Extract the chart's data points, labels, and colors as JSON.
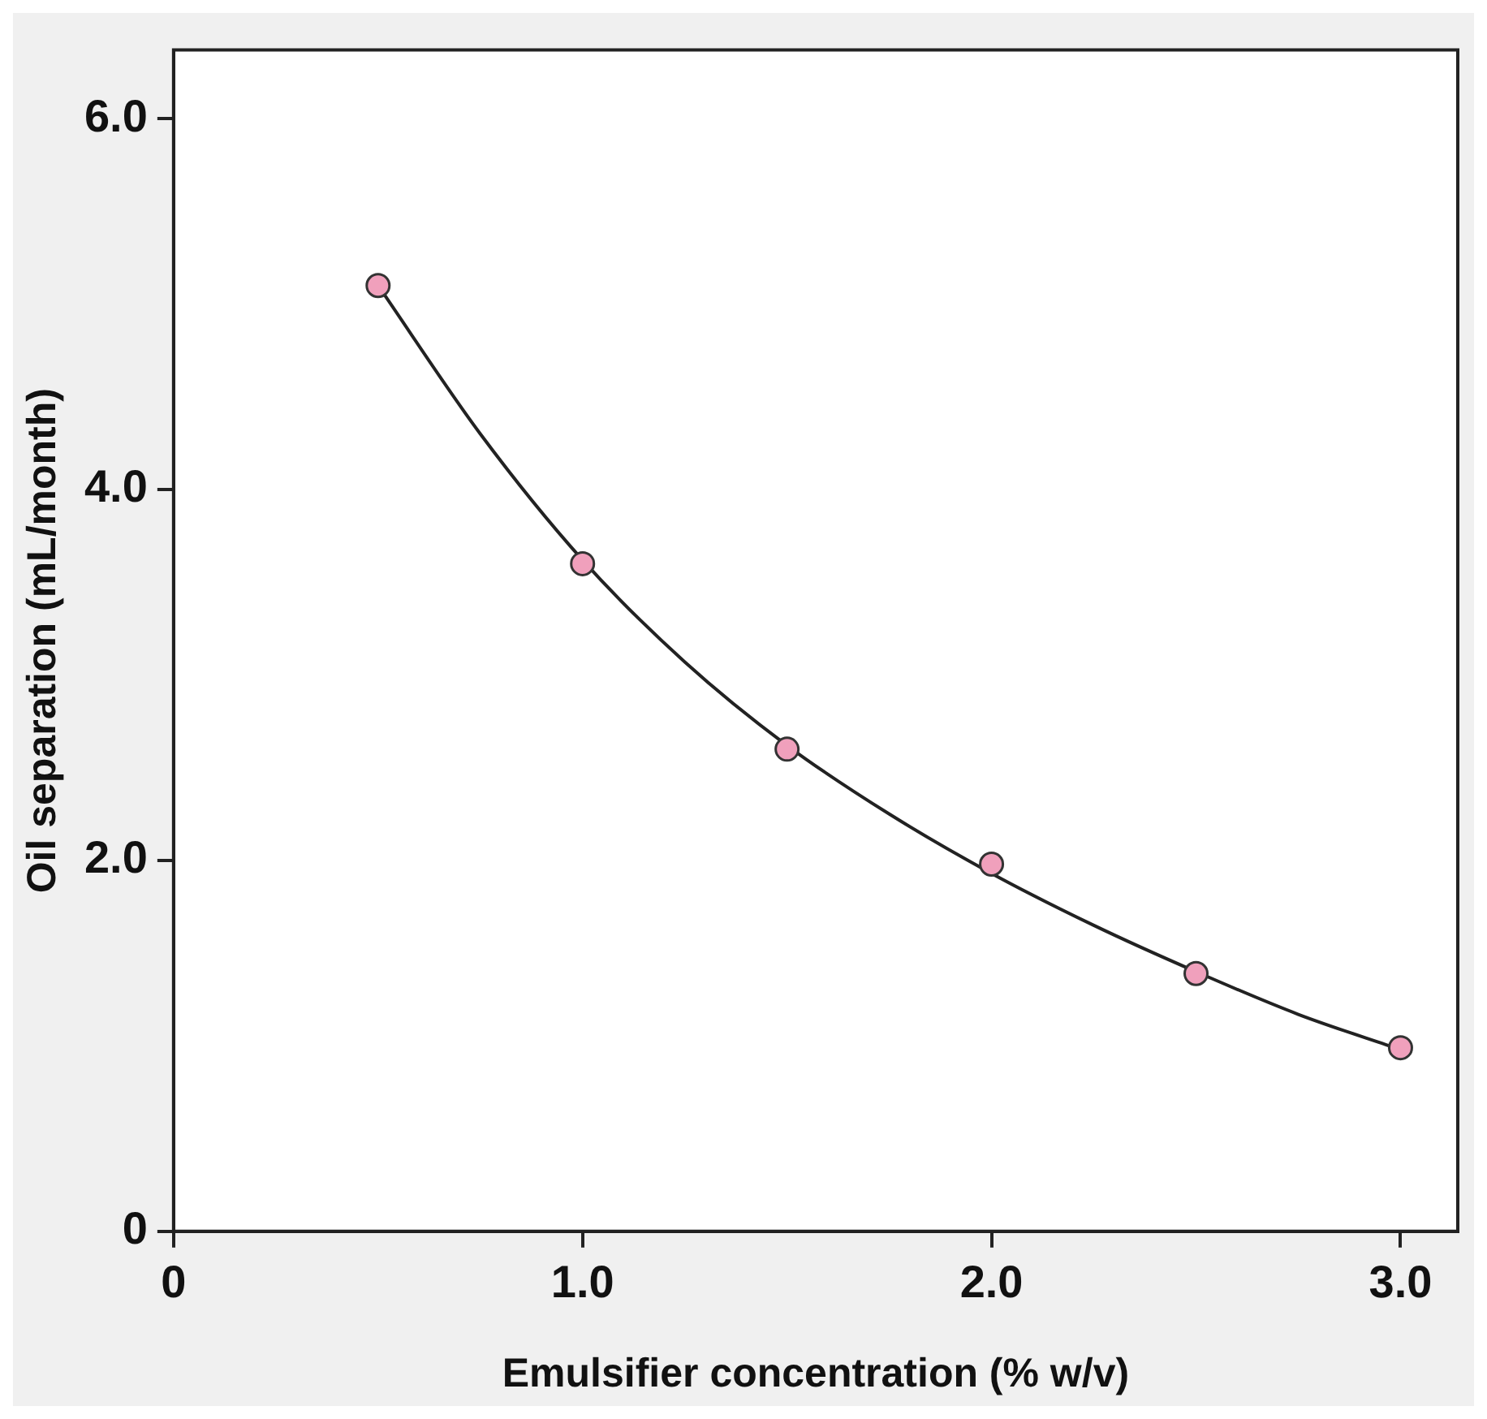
{
  "chart_data": {
    "type": "scatter",
    "xlabel": "Emulsifier concentration (% w/v)",
    "ylabel": "Oil separation (mL/month)",
    "x": [
      0.5,
      1.0,
      1.5,
      2.0,
      2.5,
      3.0
    ],
    "series": [
      {
        "color": "#f0a0bc",
        "marker": "circle",
        "values": [
          5.1,
          3.6,
          2.6,
          1.98,
          1.39,
          0.99
        ]
      },
      {
        "type": "line",
        "color": "#222222",
        "marker": "none",
        "x": [
          0.5,
          0.75,
          1.0,
          1.25,
          1.5,
          1.75,
          2.0,
          2.25,
          2.5,
          2.75,
          3.0
        ],
        "values": [
          5.1,
          4.3,
          3.62,
          3.07,
          2.62,
          2.25,
          1.93,
          1.65,
          1.4,
          1.17,
          0.98
        ]
      }
    ],
    "xlim": [
      0,
      3.14
    ],
    "ylim": [
      0,
      6.37
    ],
    "xticks": [
      0,
      {
        "value": 1,
        "label": "1.0"
      },
      {
        "value": 2,
        "label": "2.0"
      },
      {
        "value": 3,
        "label": "3.0"
      }
    ],
    "yticks": [
      0,
      {
        "value": 2,
        "label": "2.0"
      },
      {
        "value": 4,
        "label": "4.0"
      },
      {
        "value": 6,
        "label": "6.0"
      }
    ]
  }
}
